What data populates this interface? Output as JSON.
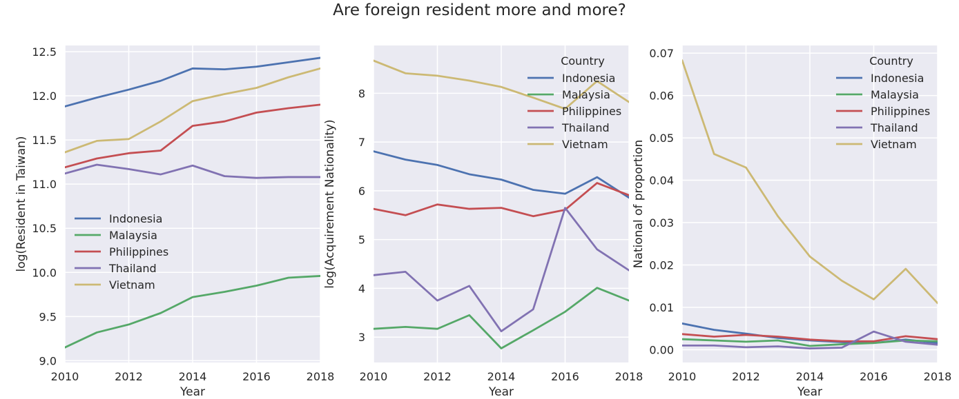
{
  "figure_title": "Are foreign resident more and more?",
  "colors": {
    "Indonesia": "#4c72b0",
    "Malaysia": "#55a868",
    "Philippines": "#c44e52",
    "Thailand": "#8172b2",
    "Vietnam": "#ccb974",
    "panel_background": "#eaeaf2",
    "grid": "#ffffff",
    "text": "#262626"
  },
  "chart_data": [
    {
      "type": "line",
      "title": "",
      "xlabel": "Year",
      "ylabel": "log(Resident in Taiwan)",
      "x": [
        2010,
        2011,
        2012,
        2013,
        2014,
        2015,
        2016,
        2017,
        2018
      ],
      "xlim": [
        2010,
        2018
      ],
      "ylim": [
        8.98,
        12.57
      ],
      "xticks": [
        2010,
        2012,
        2014,
        2016,
        2018
      ],
      "yticks": [
        9.0,
        9.5,
        10.0,
        10.5,
        11.0,
        11.5,
        12.0,
        12.5
      ],
      "ytick_labels": [
        "9.0",
        "9.5",
        "10.0",
        "10.5",
        "11.0",
        "11.5",
        "12.0",
        "12.5"
      ],
      "grid": true,
      "legend": {
        "placement": "center-left",
        "title": ""
      },
      "series": [
        {
          "name": "Indonesia",
          "values": [
            11.88,
            11.98,
            12.07,
            12.17,
            12.31,
            12.3,
            12.33,
            12.38,
            12.43
          ]
        },
        {
          "name": "Malaysia",
          "values": [
            9.15,
            9.32,
            9.41,
            9.54,
            9.72,
            9.78,
            9.85,
            9.94,
            9.96
          ]
        },
        {
          "name": "Philippines",
          "values": [
            11.19,
            11.29,
            11.35,
            11.38,
            11.66,
            11.71,
            11.81,
            11.86,
            11.9
          ]
        },
        {
          "name": "Thailand",
          "values": [
            11.12,
            11.22,
            11.17,
            11.11,
            11.21,
            11.09,
            11.07,
            11.08,
            11.08
          ]
        },
        {
          "name": "Vietnam",
          "values": [
            11.36,
            11.49,
            11.51,
            11.71,
            11.94,
            12.02,
            12.09,
            12.21,
            12.31
          ]
        }
      ]
    },
    {
      "type": "line",
      "title": "",
      "xlabel": "Year",
      "ylabel": "log(Acquirement Nationality)",
      "x": [
        2010,
        2011,
        2012,
        2013,
        2014,
        2015,
        2016,
        2017,
        2018
      ],
      "xlim": [
        2010,
        2018
      ],
      "ylim": [
        2.48,
        8.98
      ],
      "xticks": [
        2010,
        2012,
        2014,
        2016,
        2018
      ],
      "yticks": [
        3,
        4,
        5,
        6,
        7,
        8
      ],
      "ytick_labels": [
        "3",
        "4",
        "5",
        "6",
        "7",
        "8"
      ],
      "grid": true,
      "legend": {
        "placement": "upper-right",
        "title": "Country"
      },
      "series": [
        {
          "name": "Indonesia",
          "values": [
            6.81,
            6.64,
            6.53,
            6.34,
            6.23,
            6.02,
            5.94,
            6.28,
            5.86
          ]
        },
        {
          "name": "Malaysia",
          "values": [
            3.17,
            3.21,
            3.17,
            3.45,
            2.77,
            3.14,
            3.52,
            4.01,
            3.75
          ]
        },
        {
          "name": "Philippines",
          "values": [
            5.63,
            5.5,
            5.72,
            5.63,
            5.65,
            5.48,
            5.61,
            6.16,
            5.91
          ]
        },
        {
          "name": "Thailand",
          "values": [
            4.27,
            4.34,
            3.75,
            4.05,
            3.12,
            3.57,
            5.65,
            4.8,
            4.37
          ]
        },
        {
          "name": "Vietnam",
          "values": [
            8.67,
            8.41,
            8.36,
            8.26,
            8.13,
            7.91,
            7.68,
            8.25,
            7.82
          ]
        }
      ]
    },
    {
      "type": "line",
      "title": "",
      "xlabel": "Year",
      "ylabel": "National of proportion",
      "x": [
        2010,
        2011,
        2012,
        2013,
        2014,
        2015,
        2016,
        2017,
        2018
      ],
      "xlim": [
        2010,
        2018
      ],
      "ylim": [
        -0.003,
        0.0718
      ],
      "xticks": [
        2010,
        2012,
        2014,
        2016,
        2018
      ],
      "yticks": [
        0.0,
        0.01,
        0.02,
        0.03,
        0.04,
        0.05,
        0.06,
        0.07
      ],
      "ytick_labels": [
        "0.00",
        "0.01",
        "0.02",
        "0.03",
        "0.04",
        "0.05",
        "0.06",
        "0.07"
      ],
      "grid": true,
      "legend": {
        "placement": "upper-right",
        "title": "Country"
      },
      "series": [
        {
          "name": "Indonesia",
          "values": [
            0.0062,
            0.0047,
            0.0038,
            0.0028,
            0.0022,
            0.0018,
            0.0016,
            0.0024,
            0.0016
          ]
        },
        {
          "name": "Malaysia",
          "values": [
            0.0025,
            0.0022,
            0.0019,
            0.0022,
            0.0009,
            0.0013,
            0.0016,
            0.0022,
            0.002
          ]
        },
        {
          "name": "Philippines",
          "values": [
            0.0037,
            0.0031,
            0.0035,
            0.0031,
            0.0024,
            0.002,
            0.002,
            0.0032,
            0.0025
          ]
        },
        {
          "name": "Thailand",
          "values": [
            0.001,
            0.001,
            0.0006,
            0.0008,
            0.0003,
            0.0005,
            0.0043,
            0.0019,
            0.0012
          ]
        },
        {
          "name": "Vietnam",
          "values": [
            0.0683,
            0.0462,
            0.043,
            0.0315,
            0.022,
            0.0163,
            0.0119,
            0.0191,
            0.011
          ]
        }
      ]
    }
  ]
}
